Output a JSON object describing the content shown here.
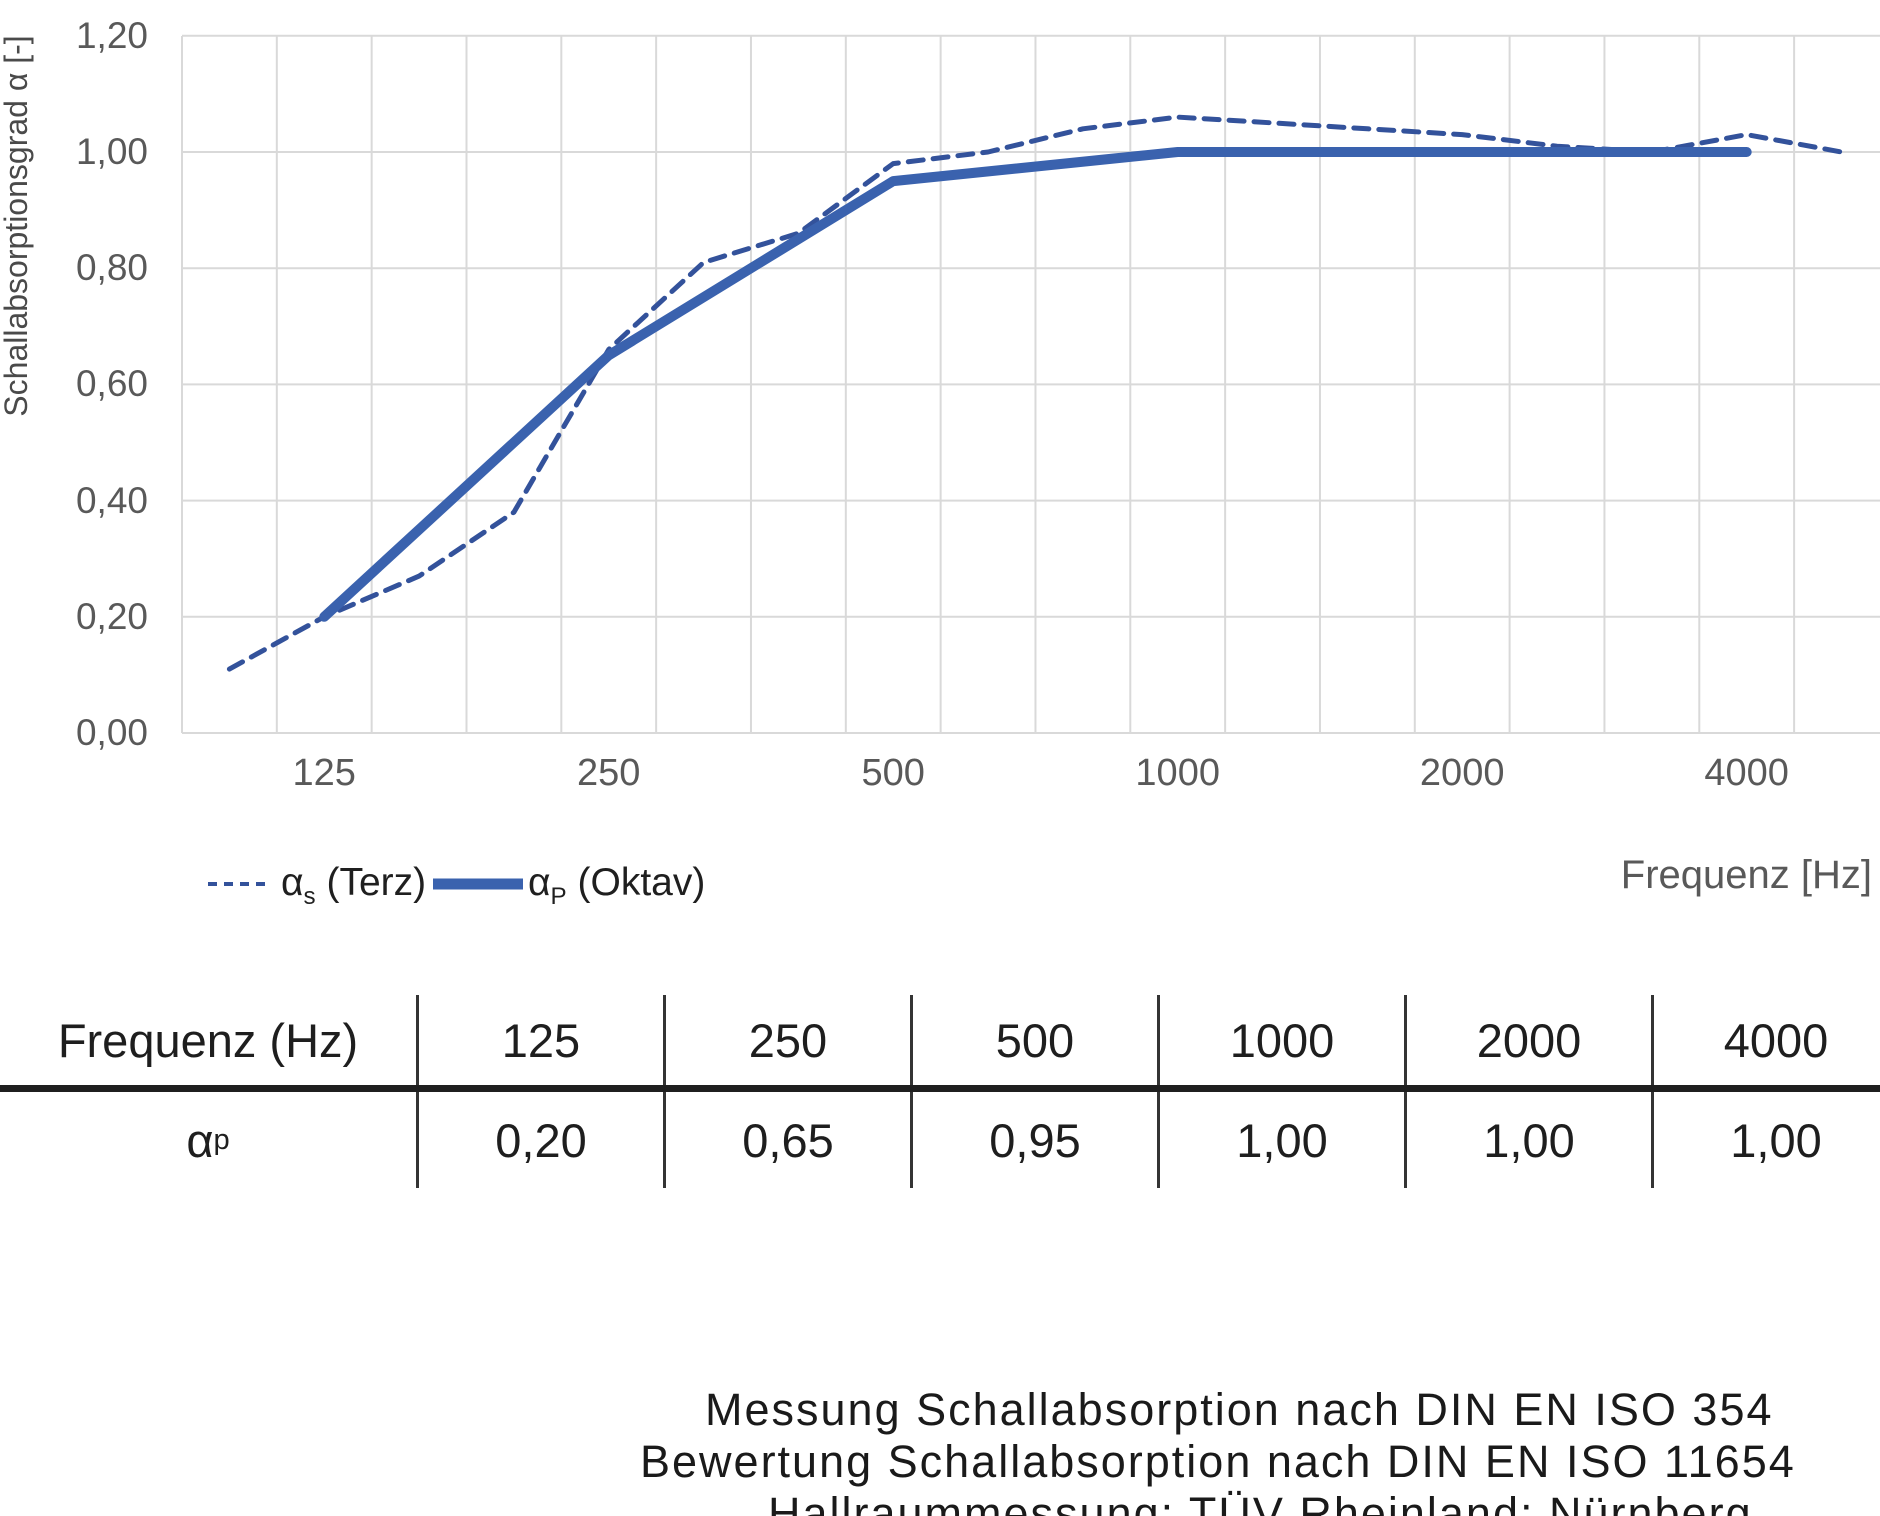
{
  "colors": {
    "grid": "#d9d9d9",
    "tick_text": "#595959",
    "series_dashed": "#33529b",
    "series_solid": "#3a62ae",
    "table_line": "#343434",
    "body_text": "#1e1e1e"
  },
  "chart_data": {
    "type": "line",
    "title": "",
    "xlabel": "Frequenz [Hz]",
    "ylabel": "Schallabsorptionsgrad α [-]",
    "ylim": [
      0.0,
      1.2
    ],
    "grid": "on",
    "legend_position": "bottom-left",
    "x_categories": [
      "100",
      "125",
      "160",
      "200",
      "250",
      "315",
      "400",
      "500",
      "630",
      "800",
      "1000",
      "1250",
      "1600",
      "2000",
      "2500",
      "3150",
      "4000",
      "5000"
    ],
    "x_tick_labels": [
      {
        "label": "125",
        "band_index": 1
      },
      {
        "label": "250",
        "band_index": 4
      },
      {
        "label": "500",
        "band_index": 7
      },
      {
        "label": "1000",
        "band_index": 10
      },
      {
        "label": "2000",
        "band_index": 13
      },
      {
        "label": "4000",
        "band_index": 16
      }
    ],
    "y_ticks": [
      {
        "label": "0,00",
        "value": 0.0
      },
      {
        "label": "0,20",
        "value": 0.2
      },
      {
        "label": "0,40",
        "value": 0.4
      },
      {
        "label": "0,60",
        "value": 0.6
      },
      {
        "label": "0,80",
        "value": 0.8
      },
      {
        "label": "1,00",
        "value": 1.0
      },
      {
        "label": "1,20",
        "value": 1.2
      }
    ],
    "series": [
      {
        "name": "αs (Terz)",
        "style": "dashed",
        "band_indices": [
          0,
          1,
          2,
          3,
          4,
          5,
          6,
          7,
          8,
          9,
          10,
          11,
          12,
          13,
          14,
          15,
          16,
          17
        ],
        "values": [
          0.11,
          0.2,
          0.27,
          0.38,
          0.66,
          0.81,
          0.86,
          0.98,
          1.0,
          1.04,
          1.06,
          1.05,
          1.04,
          1.03,
          1.01,
          1.0,
          1.03,
          1.0
        ]
      },
      {
        "name": "αP (Oktav)",
        "style": "solid",
        "band_indices": [
          1,
          4,
          7,
          10,
          13,
          16
        ],
        "values": [
          0.2,
          0.65,
          0.95,
          1.0,
          1.0,
          1.0
        ]
      }
    ]
  },
  "legend": {
    "items": [
      {
        "alpha": "α",
        "sub": "s",
        "rest": " (Terz)"
      },
      {
        "alpha": "α",
        "sub": "P",
        "rest": " (Oktav)"
      }
    ]
  },
  "table": {
    "header": [
      "Frequenz (Hz)",
      "125",
      "250",
      "500",
      "1000",
      "2000",
      "4000"
    ],
    "row_label": {
      "alpha": "α",
      "sub": "p"
    },
    "values": [
      "0,20",
      "0,65",
      "0,95",
      "1,00",
      "1,00",
      "1,00"
    ]
  },
  "notes": [
    "Messung Schallabsorption nach DIN EN ISO 354",
    "Bewertung Schallabsorption nach DIN EN ISO 11654",
    "Hallraummessung: TÜV Rheinland; Nürnberg"
  ]
}
